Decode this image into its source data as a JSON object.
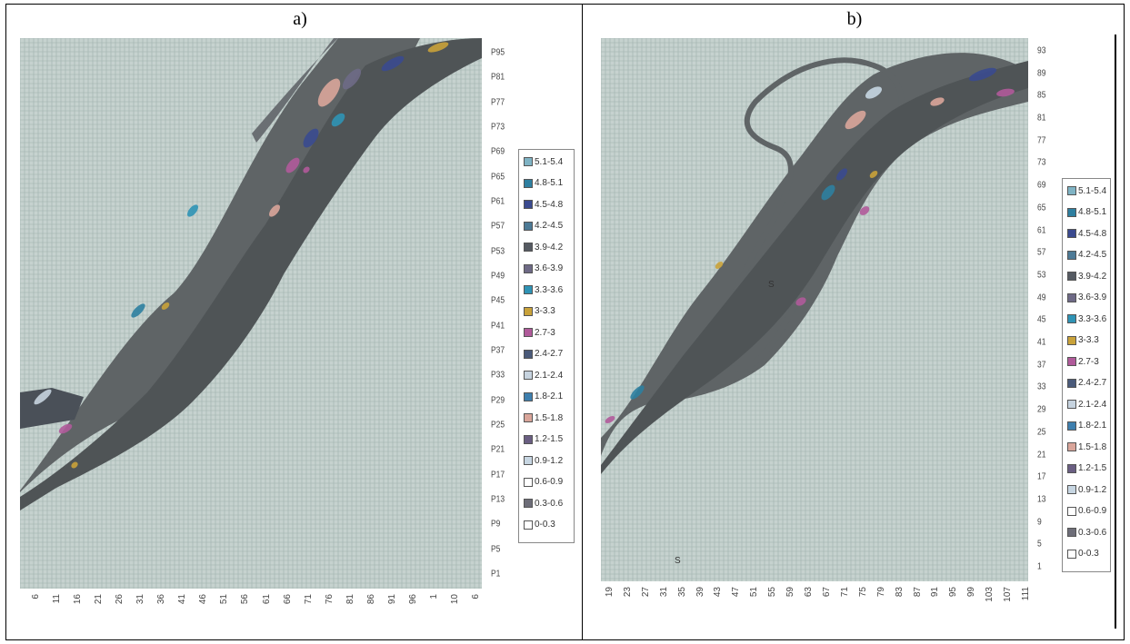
{
  "panels": [
    {
      "label": "a)",
      "y_ticks": [
        "P95",
        "P81",
        "P77",
        "P73",
        "P69",
        "P65",
        "P61",
        "P57",
        "P53",
        "P49",
        "P45",
        "P41",
        "P37",
        "P33",
        "P29",
        "P25",
        "P21",
        "P17",
        "P13",
        "P9",
        "P5",
        "P1"
      ],
      "x_ticks": [
        "6",
        "11",
        "16",
        "21",
        "26",
        "31",
        "36",
        "41",
        "46",
        "51",
        "56",
        "61",
        "66",
        "71",
        "76",
        "81",
        "86",
        "91",
        "96",
        "1",
        "10",
        "6"
      ],
      "legend": [
        "5.1-5.4",
        "4.8-5.1",
        "4.5-4.8",
        "4.2-4.5",
        "3.9-4.2",
        "3.6-3.9",
        "3.3-3.6",
        "3-3.3",
        "2.7-3",
        "2.4-2.7",
        "2.1-2.4",
        "1.8-2.1",
        "1.5-1.8",
        "1.2-1.5",
        "0.9-1.2",
        "0.6-0.9",
        "0.3-0.6",
        "0-0.3"
      ]
    },
    {
      "label": "b)",
      "y_ticks": [
        "93",
        "89",
        "85",
        "81",
        "77",
        "73",
        "69",
        "65",
        "61",
        "57",
        "53",
        "49",
        "45",
        "41",
        "37",
        "33",
        "29",
        "25",
        "21",
        "17",
        "13",
        "9",
        "5",
        "1"
      ],
      "x_ticks": [
        "19",
        "23",
        "27",
        "31",
        "35",
        "39",
        "43",
        "47",
        "51",
        "55",
        "59",
        "63",
        "67",
        "71",
        "75",
        "79",
        "83",
        "87",
        "91",
        "95",
        "99",
        "103",
        "107",
        "111"
      ],
      "legend": [
        "5.1-5.4",
        "4.8-5.1",
        "4.5-4.8",
        "4.2-4.5",
        "3.9-4.2",
        "3.6-3.9",
        "3.3-3.6",
        "3-3.3",
        "2.7-3",
        "2.4-2.7",
        "2.1-2.4",
        "1.8-2.1",
        "1.5-1.8",
        "1.2-1.5",
        "0.9-1.2",
        "0.6-0.9",
        "0.3-0.6",
        "0-0.3"
      ],
      "annotations": [
        "S",
        "S"
      ]
    }
  ],
  "legend_colors": [
    "#7fb3c4",
    "#2e7fa0",
    "#3a4a8f",
    "#4d7a96",
    "#555a62",
    "#6e6a86",
    "#2f93b5",
    "#c9a23a",
    "#b05a9a",
    "#4a5a7a",
    "#c6d3df",
    "#3e7fae",
    "#d9a59a",
    "#6a5e82",
    "#c7d6e2",
    "#ffffff",
    "#6d6d78",
    "#ffffff"
  ],
  "colors": {
    "grid_bg": "#c6d2cf",
    "grid_line": "#9fb0ad",
    "band": "#5f6466",
    "band_dark": "#4f5456"
  }
}
